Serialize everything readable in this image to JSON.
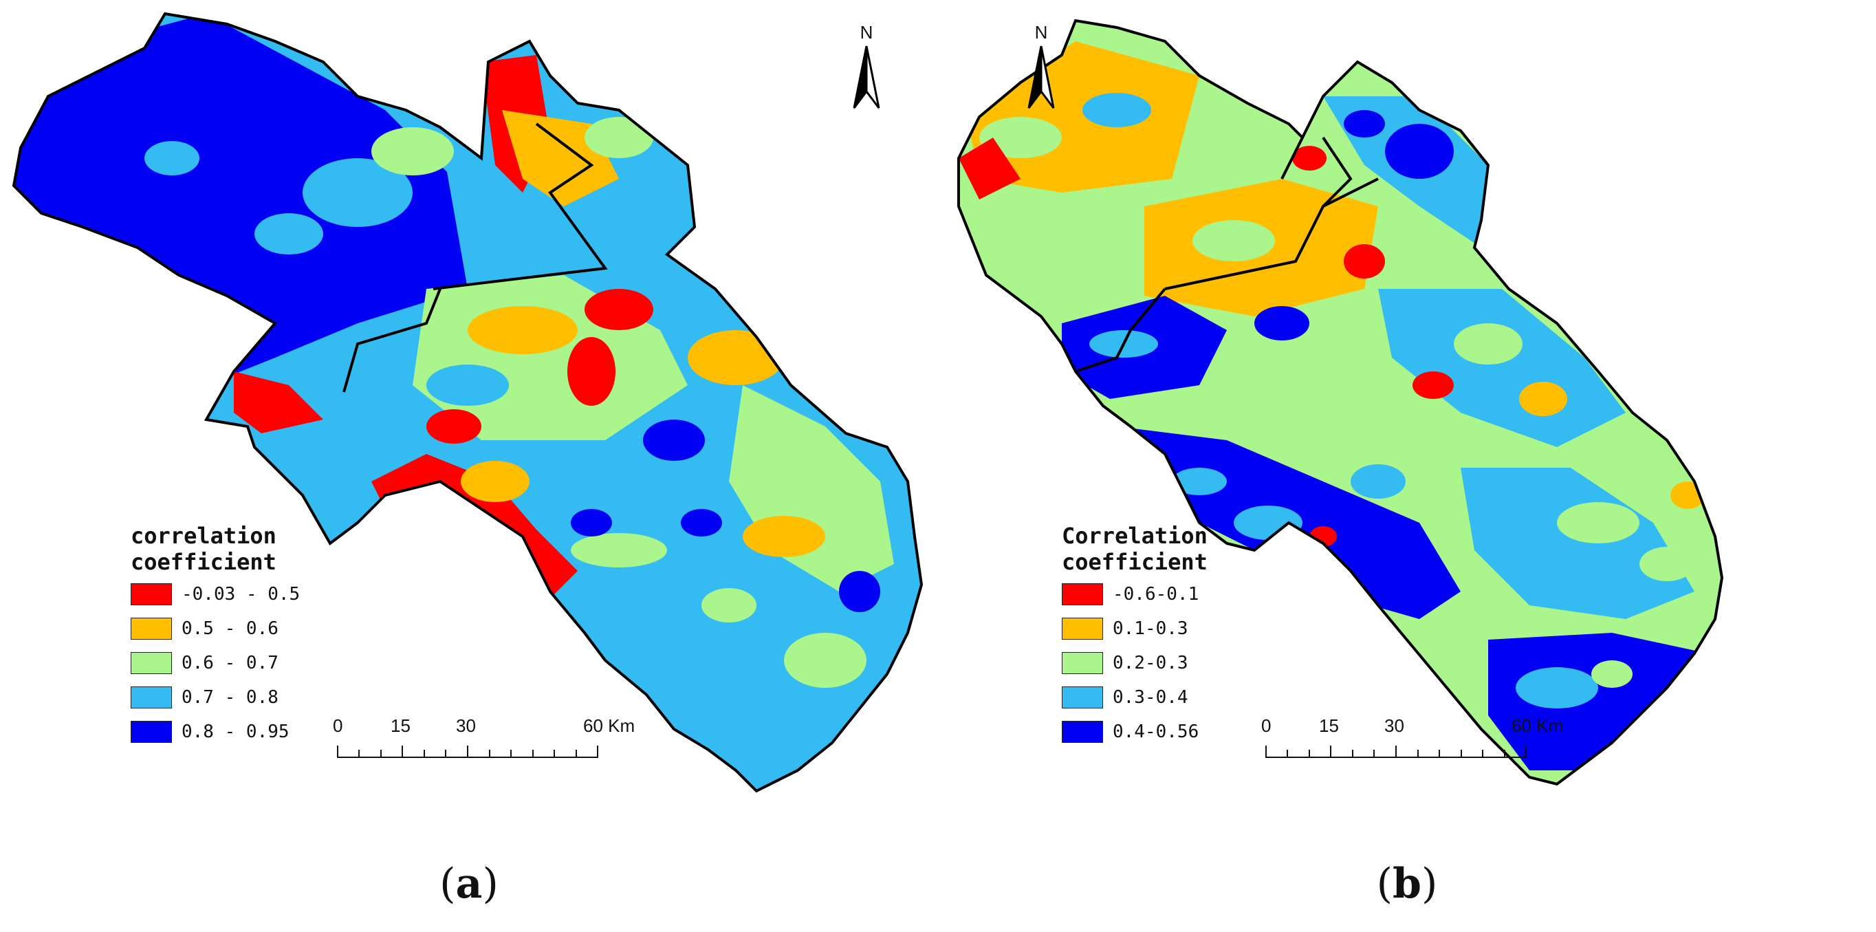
{
  "panels": [
    {
      "id": "a",
      "caption_open": "(",
      "caption_letter": "a",
      "caption_close": ")",
      "legend": {
        "title": "correlation\ncoefficient",
        "classes": [
          {
            "label": "-0.03 - 0.5",
            "color": "#ff0000"
          },
          {
            "label": "0.5 - 0.6",
            "color": "#ffbf00"
          },
          {
            "label": "0.6 - 0.7",
            "color": "#aaf58c"
          },
          {
            "label": "0.7 - 0.8",
            "color": "#33bbf2"
          },
          {
            "label": "0.8 - 0.95",
            "color": "#0000f5"
          }
        ]
      },
      "scale": {
        "ticks": [
          "0",
          "15",
          "30",
          "60 Km"
        ]
      },
      "north_label": "N"
    },
    {
      "id": "b",
      "caption_open": "(",
      "caption_letter": "b",
      "caption_close": ")",
      "legend": {
        "title": "Correlation\ncoefficient",
        "classes": [
          {
            "label": "-0.6-0.1",
            "color": "#ff0000"
          },
          {
            "label": "0.1-0.3",
            "color": "#ffbf00"
          },
          {
            "label": "0.2-0.3",
            "color": "#aaf58c"
          },
          {
            "label": "0.3-0.4",
            "color": "#33bbf2"
          },
          {
            "label": "0.4-0.56",
            "color": "#0000f5"
          }
        ]
      },
      "scale": {
        "ticks": [
          "0",
          "15",
          "30",
          "60 Km"
        ]
      },
      "north_label": "N"
    }
  ]
}
